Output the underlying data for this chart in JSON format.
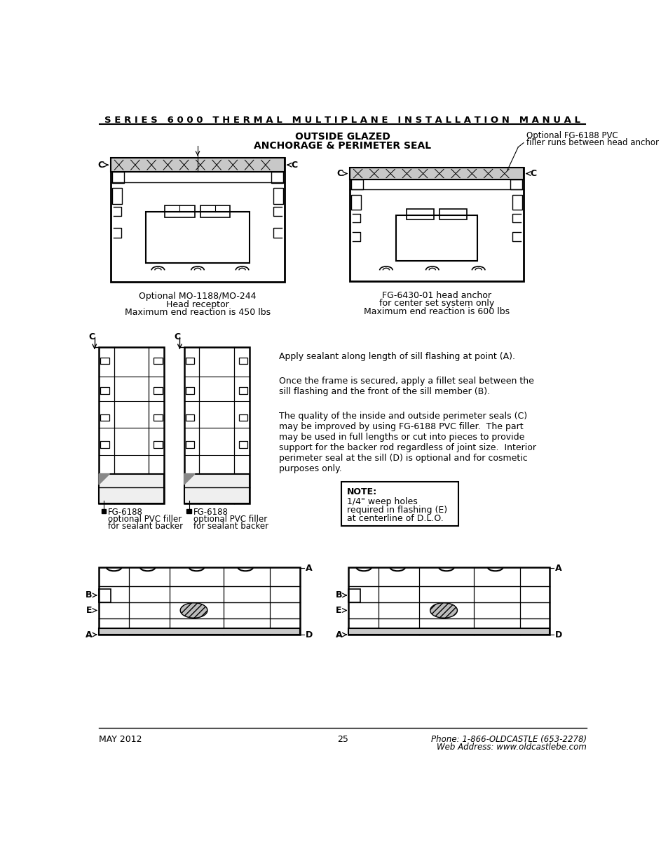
{
  "title": "S E R I E S   6 0 0 0   T H E R M A L   M U L T I P L A N E   I N S T A L L A T I O N   M A N U A L",
  "subtitle1": "OUTSIDE GLAZED",
  "subtitle2": "ANCHORAGE & PERIMETER SEAL",
  "caption_left1": "Optional MO-1188/MO-244",
  "caption_left2": "Head receptor",
  "caption_left3": "Maximum end reaction is 450 lbs",
  "caption_right1": "FG-6430-01 head anchor",
  "caption_right2": "for center set system only",
  "caption_right3": "Maximum end reaction is 600 lbs",
  "annotation_right1": "Optional FG-6188 PVC",
  "annotation_right2": "filler runs between head anchor",
  "text_block1": "Apply sealant along length of sill flashing at point (A).",
  "text_block2": "Once the frame is secured, apply a fillet seal between the\nsill flashing and the front of the sill member (B).",
  "text_block3": "The quality of the inside and outside perimeter seals (C)\nmay be improved by using FG-6188 PVC filler.  The part\nmay be used in full lengths or cut into pieces to provide\nsupport for the backer rod regardless of joint size.  Interior\nperimeter seal at the sill (D) is optional and for cosmetic\npurposes only.",
  "note_title": "NOTE:",
  "note_line1": "1/4\" weep holes",
  "note_line2": "required in flashing (E)",
  "note_line3": "at centerline of D.L.O.",
  "label_fg6188_left1": "FG-6188",
  "label_fg6188_left2": "optional PVC filler",
  "label_fg6188_left3": "for sealant backer",
  "label_fg6188_right1": "FG-6188",
  "label_fg6188_right2": "optional PVC filler",
  "label_fg6188_right3": "for sealant backer",
  "footer_left": "MAY 2012",
  "footer_center": "25",
  "footer_right1": "Phone: 1-866-OLDCASTLE (653-2278)",
  "footer_right2": "Web Address: www.oldcastlebe.com",
  "bg_color": "#ffffff",
  "text_color": "#000000"
}
